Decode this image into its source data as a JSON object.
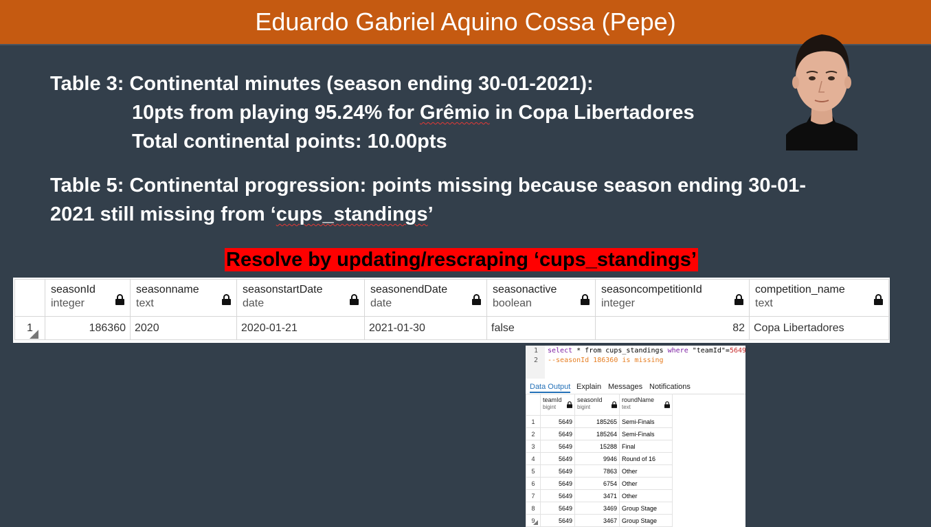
{
  "title": "Eduardo Gabriel Aquino Cossa (Pepe)",
  "table3": {
    "heading": "Table 3: Continental minutes (season ending 30-01-2021):",
    "line1_pre": "10pts from playing 95.24% for ",
    "line1_team": "Grêmio",
    "line1_post": " in Copa Libertadores",
    "line2": "Total continental points: 10.00pts"
  },
  "table5": {
    "line1": "Table 5: Continental progression: points missing because season ending 30-01-",
    "line2_pre": "2021 still missing from ‘",
    "line2_table": "cups_standings",
    "line2_post": "’"
  },
  "resolve_note": "Resolve by updating/rescraping ‘cups_standings’",
  "season_grid": {
    "columns": [
      {
        "name": "seasonId",
        "type": "integer"
      },
      {
        "name": "seasonname",
        "type": "text"
      },
      {
        "name": "seasonstartDate",
        "type": "date"
      },
      {
        "name": "seasonendDate",
        "type": "date"
      },
      {
        "name": "seasonactive",
        "type": "boolean"
      },
      {
        "name": "seasoncompetitionId",
        "type": "integer"
      },
      {
        "name": "competition_name",
        "type": "text"
      }
    ],
    "row": {
      "n": "1",
      "seasonId": "186360",
      "seasonname": "2020",
      "seasonstartDate": "2020-01-21",
      "seasonendDate": "2021-01-30",
      "seasonactive": "false",
      "seasoncompetitionId": "82",
      "competition_name": "Copa Libertadores"
    }
  },
  "query_panel": {
    "line_numbers": [
      "1",
      "2"
    ],
    "code_kw1": "select",
    "code_mid1": " * from cups_standings ",
    "code_kw2": "where",
    "code_mid2": " \"teamId\"=",
    "code_val": "5649",
    "comment": "--seasonId 186360 is missing",
    "tabs": [
      "Data Output",
      "Explain",
      "Messages",
      "Notifications"
    ],
    "columns": [
      {
        "name": "teamId",
        "type": "bigint"
      },
      {
        "name": "seasonId",
        "type": "bigint"
      },
      {
        "name": "roundName",
        "type": "text"
      }
    ],
    "rows": [
      {
        "n": "1",
        "teamId": "5649",
        "seasonId": "185265",
        "roundName": "Semi-Finals"
      },
      {
        "n": "2",
        "teamId": "5649",
        "seasonId": "185264",
        "roundName": "Semi-Finals"
      },
      {
        "n": "3",
        "teamId": "5649",
        "seasonId": "15288",
        "roundName": "Final"
      },
      {
        "n": "4",
        "teamId": "5649",
        "seasonId": "9946",
        "roundName": "Round of 16"
      },
      {
        "n": "5",
        "teamId": "5649",
        "seasonId": "7863",
        "roundName": "Other"
      },
      {
        "n": "6",
        "teamId": "5649",
        "seasonId": "6754",
        "roundName": "Other"
      },
      {
        "n": "7",
        "teamId": "5649",
        "seasonId": "3471",
        "roundName": "Other"
      },
      {
        "n": "8",
        "teamId": "5649",
        "seasonId": "3469",
        "roundName": "Group Stage"
      },
      {
        "n": "9",
        "teamId": "5649",
        "seasonId": "3467",
        "roundName": "Group Stage"
      }
    ]
  },
  "colors": {
    "title_bar": "#c55a11",
    "background": "#333f4b",
    "highlight": "#ff0000"
  }
}
